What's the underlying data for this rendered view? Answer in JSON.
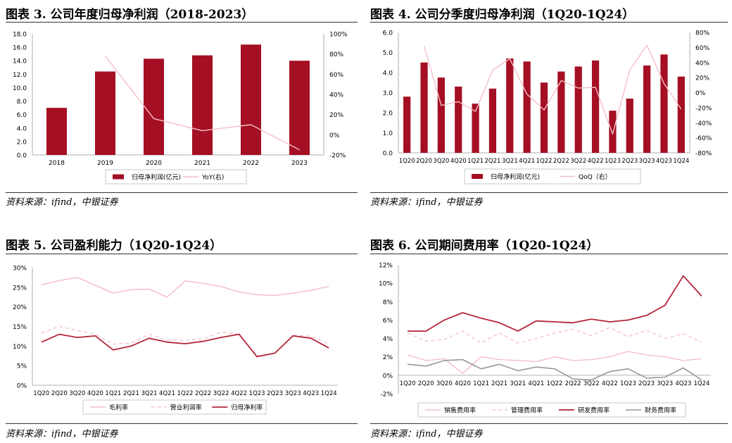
{
  "panels": [
    {
      "title": "图表 3. 公司年度归母净利润（2018-2023）",
      "source": "资料来源：ifind，中银证券"
    },
    {
      "title": "图表 4. 公司分季度归母净利润（1Q20-1Q24）",
      "source": "资料来源：ifind，中银证券"
    },
    {
      "title": "图表 5. 公司盈利能力（1Q20-1Q24）",
      "source": "资料来源：ifind，中银证券"
    },
    {
      "title": "图表 6. 公司期间费用率（1Q20-1Q24）",
      "source": "资料来源：ifind，中银证券"
    }
  ],
  "colors": {
    "bar": "#A50F23",
    "line_pink": "#F4BFC7",
    "dark_red": "#B5243A",
    "gray": "#999999"
  },
  "chart_data": [
    {
      "type": "bar",
      "categories": [
        "2018",
        "2019",
        "2020",
        "2021",
        "2022",
        "2023"
      ],
      "series": [
        {
          "name": "归母净利润(亿元)",
          "values": [
            7.0,
            12.4,
            14.3,
            14.8,
            16.4,
            14.0
          ],
          "axis": "left"
        },
        {
          "name": "YoY(右)",
          "type": "line",
          "values": [
            null,
            78,
            16,
            4,
            10,
            -15
          ],
          "axis": "right"
        }
      ],
      "ylim": [
        0,
        18
      ],
      "yticks": [
        "0.0",
        "2.0",
        "4.0",
        "6.0",
        "8.0",
        "10.0",
        "12.0",
        "14.0",
        "16.0",
        "18.0"
      ],
      "y2lim": [
        -20,
        100
      ],
      "y2ticks": [
        "-20%",
        "0%",
        "20%",
        "40%",
        "60%",
        "80%",
        "100%"
      ],
      "legend": "bottom"
    },
    {
      "type": "bar",
      "categories": [
        "1Q20",
        "2Q20",
        "3Q20",
        "4Q20",
        "1Q21",
        "2Q21",
        "3Q21",
        "4Q21",
        "1Q22",
        "2Q22",
        "3Q22",
        "4Q22",
        "1Q23",
        "2Q23",
        "3Q23",
        "4Q23",
        "1Q24"
      ],
      "series": [
        {
          "name": "归母净利润(亿元)",
          "values": [
            2.8,
            4.5,
            3.75,
            3.3,
            2.45,
            3.2,
            4.7,
            4.55,
            3.5,
            4.05,
            4.3,
            4.6,
            2.1,
            2.7,
            4.35,
            4.9,
            3.8
          ],
          "axis": "left"
        },
        {
          "name": "QoQ（右）",
          "type": "line",
          "values": [
            null,
            62,
            -17,
            -12,
            -25,
            30,
            45,
            -2,
            -23,
            16,
            6,
            7,
            -55,
            30,
            63,
            12,
            -22
          ],
          "axis": "right"
        }
      ],
      "ylim": [
        0,
        6
      ],
      "yticks": [
        "0.0",
        "1.0",
        "2.0",
        "3.0",
        "4.0",
        "5.0",
        "6.0"
      ],
      "y2lim": [
        -80,
        80
      ],
      "y2ticks": [
        "-80%",
        "-60%",
        "-40%",
        "-20%",
        "0%",
        "20%",
        "40%",
        "60%",
        "80%"
      ],
      "legend": "bottom"
    },
    {
      "type": "line",
      "categories": [
        "1Q20",
        "2Q20",
        "3Q20",
        "4Q20",
        "1Q21",
        "2Q21",
        "3Q21",
        "4Q21",
        "1Q22",
        "2Q22",
        "3Q22",
        "4Q22",
        "1Q23",
        "2Q23",
        "3Q23",
        "4Q23",
        "1Q24"
      ],
      "series": [
        {
          "name": "毛利率",
          "values": [
            25.6,
            26.7,
            27.5,
            25.5,
            23.5,
            24.4,
            24.5,
            22.5,
            26.6,
            26.0,
            25.2,
            23.8,
            23.1,
            22.9,
            23.5,
            24.2,
            25.2
          ]
        },
        {
          "name": "营业利润率",
          "values": [
            13.3,
            15.0,
            14.0,
            13.0,
            10.5,
            10.8,
            13.0,
            11.5,
            11.5,
            11.8,
            13.5,
            13.0,
            7.5,
            8.2,
            12.8,
            12.5,
            10.5
          ]
        },
        {
          "name": "归母净利率",
          "values": [
            11.0,
            13.0,
            12.2,
            12.6,
            9.0,
            10.0,
            12.0,
            11.0,
            10.6,
            11.2,
            12.2,
            13.0,
            7.3,
            8.2,
            12.6,
            12.0,
            9.5
          ]
        }
      ],
      "ylim": [
        0,
        30
      ],
      "yticks": [
        "0%",
        "5%",
        "10%",
        "15%",
        "20%",
        "25%",
        "30%"
      ],
      "legend": "bottom"
    },
    {
      "type": "line",
      "categories": [
        "1Q20",
        "2Q20",
        "3Q20",
        "4Q20",
        "1Q21",
        "2Q21",
        "3Q21",
        "4Q21",
        "1Q22",
        "2Q22",
        "3Q22",
        "4Q22",
        "1Q23",
        "2Q23",
        "3Q23",
        "4Q23",
        "1Q24"
      ],
      "series": [
        {
          "name": "销售费用率",
          "values": [
            2.2,
            1.6,
            1.8,
            0.2,
            2.0,
            1.7,
            1.6,
            1.5,
            2.0,
            1.6,
            1.7,
            2.0,
            2.6,
            2.2,
            2.0,
            1.6,
            1.8
          ]
        },
        {
          "name": "管理费用率",
          "values": [
            4.6,
            3.7,
            3.9,
            4.8,
            3.5,
            4.6,
            3.5,
            4.0,
            4.6,
            5.0,
            4.3,
            5.2,
            4.2,
            4.9,
            4.0,
            4.5,
            3.6
          ]
        },
        {
          "name": "研发费用率",
          "values": [
            4.8,
            4.8,
            6.0,
            6.8,
            6.2,
            5.7,
            4.8,
            5.9,
            5.8,
            5.7,
            6.1,
            5.8,
            6.0,
            6.5,
            7.6,
            10.8,
            8.6
          ]
        },
        {
          "name": "财务费用率",
          "values": [
            1.2,
            1.0,
            1.6,
            1.7,
            0.7,
            1.2,
            0.5,
            0.9,
            0.7,
            -0.4,
            -0.5,
            0.4,
            0.7,
            -0.3,
            -0.2,
            0.8,
            -0.5
          ]
        }
      ],
      "ylim": [
        -2,
        12
      ],
      "yticks": [
        "-2%",
        "0%",
        "2%",
        "4%",
        "6%",
        "8%",
        "10%",
        "12%"
      ],
      "legend": "bottom"
    }
  ]
}
